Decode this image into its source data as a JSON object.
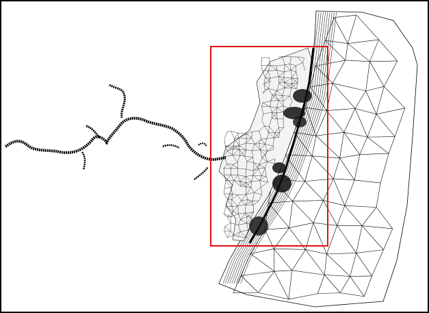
{
  "figure": {
    "border_color": "#000000",
    "mesh_color": "#000000",
    "highlight_color": "#e01010",
    "background": "#ffffff"
  }
}
